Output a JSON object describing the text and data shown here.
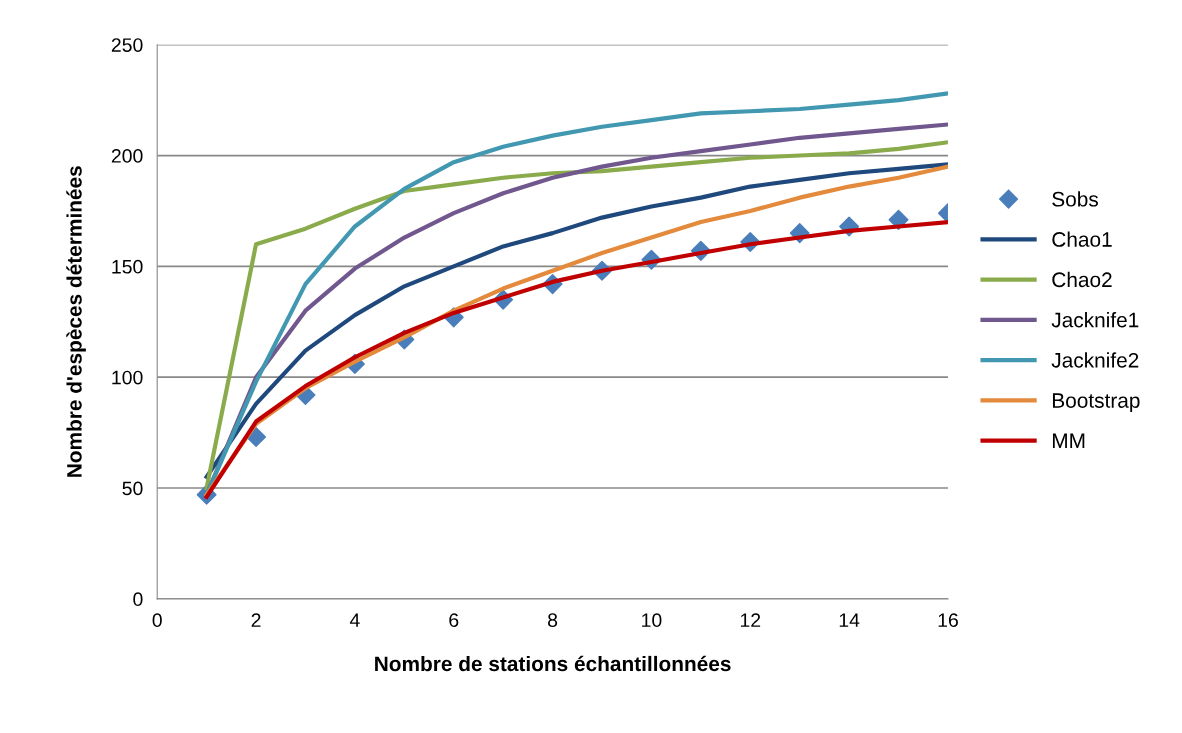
{
  "chart_data": {
    "type": "line",
    "xlabel": "Nombre de stations échantillonnées",
    "ylabel": "Nombre d'espèces déterminées",
    "x": [
      1,
      2,
      3,
      4,
      5,
      6,
      7,
      8,
      9,
      10,
      11,
      12,
      13,
      14,
      15,
      16
    ],
    "xlim": [
      0,
      16
    ],
    "xticks": [
      0,
      2,
      4,
      6,
      8,
      10,
      12,
      14,
      16
    ],
    "ylim": [
      0,
      250
    ],
    "yticks": [
      0,
      50,
      100,
      150,
      200,
      250
    ],
    "grid": "y",
    "legend": "right",
    "line_style": "solid",
    "series": [
      {
        "name": "Sobs",
        "type": "scatter",
        "marker": "diamond",
        "color": "#4a7ebb",
        "values": [
          47,
          73,
          92,
          106,
          117,
          127,
          135,
          142,
          148,
          153,
          157,
          161,
          165,
          168,
          171,
          174
        ]
      },
      {
        "name": "Chao1",
        "color": "#1f497d",
        "values": [
          55,
          88,
          112,
          128,
          141,
          150,
          159,
          165,
          172,
          177,
          181,
          186,
          189,
          192,
          194,
          196
        ]
      },
      {
        "name": "Chao2",
        "color": "#8aab4c",
        "values": [
          50,
          160,
          167,
          176,
          184,
          187,
          190,
          192,
          193,
          195,
          197,
          199,
          200,
          201,
          203,
          206
        ]
      },
      {
        "name": "Jacknife1",
        "color": "#70588f",
        "values": [
          47,
          100,
          130,
          149,
          163,
          174,
          183,
          190,
          195,
          199,
          202,
          205,
          208,
          210,
          212,
          214
        ]
      },
      {
        "name": "Jacknife2",
        "color": "#4198b0",
        "values": [
          47,
          98,
          142,
          168,
          185,
          197,
          204,
          209,
          213,
          216,
          219,
          220,
          221,
          223,
          225,
          228
        ]
      },
      {
        "name": "Bootstrap",
        "color": "#e38a3c",
        "values": [
          47,
          79,
          95,
          107,
          118,
          130,
          140,
          148,
          156,
          163,
          170,
          175,
          181,
          186,
          190,
          195
        ]
      },
      {
        "name": "MM",
        "color": "#c00000",
        "values": [
          46,
          80,
          96,
          109,
          120,
          129,
          136,
          143,
          148,
          152,
          156,
          160,
          163,
          166,
          168,
          170
        ]
      }
    ]
  }
}
